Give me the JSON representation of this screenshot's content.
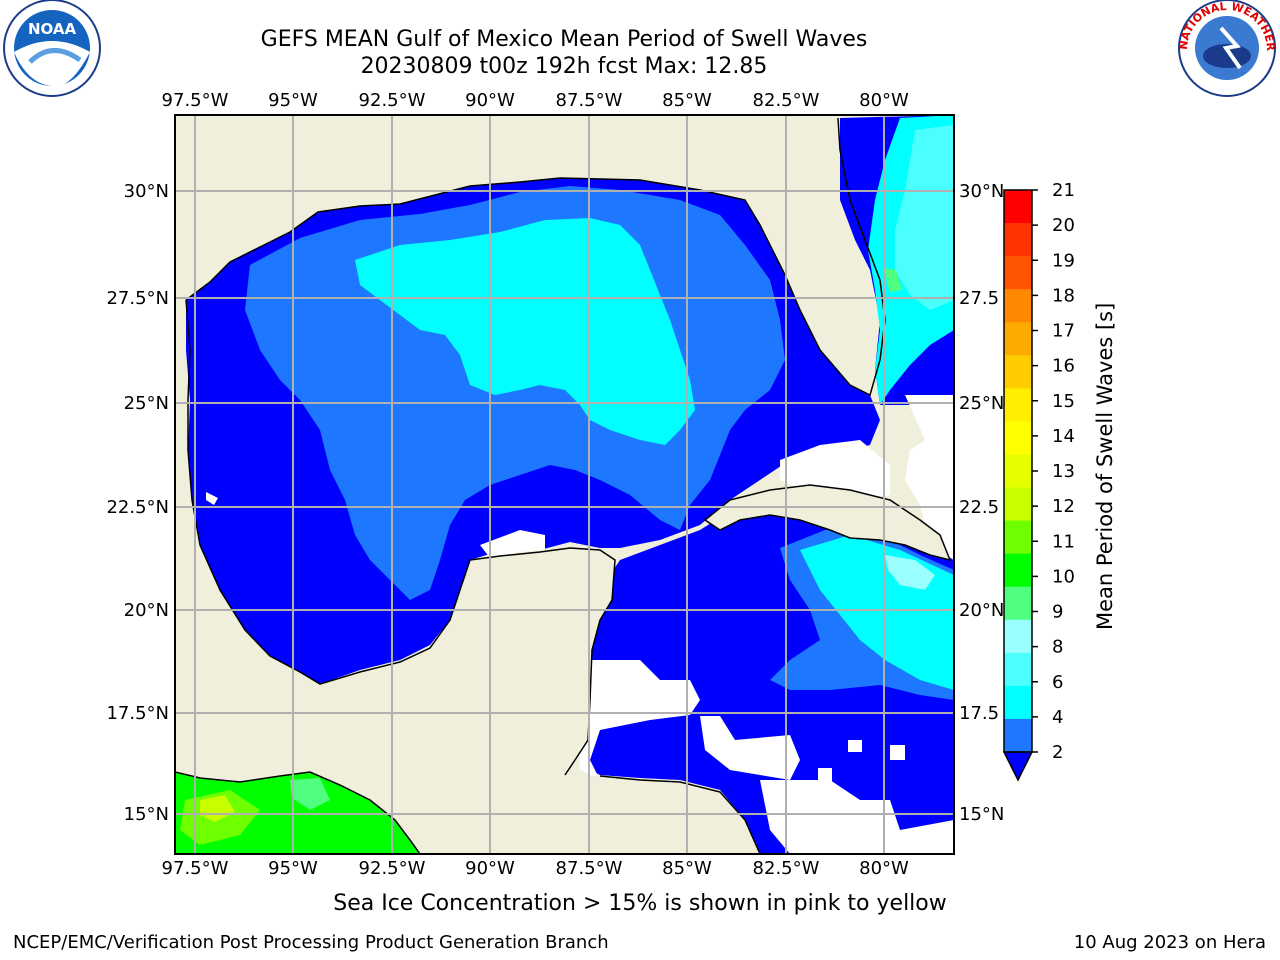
{
  "header": {
    "title_line1": "GEFS MEAN Gulf of Mexico Mean Period of Swell Waves",
    "title_line2": "20230809 t00z 192h fcst   Max: 12.85"
  },
  "logos": {
    "left": "NOAA",
    "right_ring": "NATIONAL WEATHER SERVICE"
  },
  "map": {
    "lon_labels": [
      "97.5°W",
      "95°W",
      "92.5°W",
      "90°W",
      "87.5°W",
      "85°W",
      "82.5°W",
      "80°W"
    ],
    "lat_labels_left": [
      "30°N",
      "27.5°N",
      "25°N",
      "22.5°N",
      "20°N",
      "17.5°N",
      "15°N"
    ],
    "lat_labels_right": [
      "30°N",
      "27.5",
      "25°N",
      "22.5",
      "20°N",
      "17.5",
      "15°N"
    ],
    "colors": {
      "land": "#efefdc",
      "c2": "#0000ff",
      "c4": "#1e78ff",
      "c6": "#00ffff",
      "c8": "#4cffff",
      "c9": "#99ffff",
      "c10": "#50ff80",
      "c11": "#00ff00",
      "c12": "#6eff00",
      "c13": "#c8ff00",
      "c14": "#e6ff00"
    }
  },
  "colorbar": {
    "label": "Mean Period of Swell Waves [s]",
    "ticks": [
      "21",
      "20",
      "19",
      "18",
      "17",
      "16",
      "15",
      "14",
      "13",
      "12",
      "11",
      "10",
      "9",
      "8",
      "6",
      "4",
      "2"
    ],
    "colors": [
      "#ff0000",
      "#ff3300",
      "#ff5500",
      "#ff8800",
      "#ffaa00",
      "#ffcc00",
      "#ffee00",
      "#ffff00",
      "#e6ff00",
      "#c8ff00",
      "#6eff00",
      "#00ff00",
      "#50ff80",
      "#99ffff",
      "#4cffff",
      "#00ffff",
      "#1e78ff",
      "#0000ff"
    ]
  },
  "notes": {
    "ice": "Sea Ice Concentration > 15% is shown in pink to yellow",
    "footer_left": "NCEP/EMC/Verification Post Processing Product Generation Branch",
    "footer_right": "10 Aug 2023 on Hera"
  }
}
